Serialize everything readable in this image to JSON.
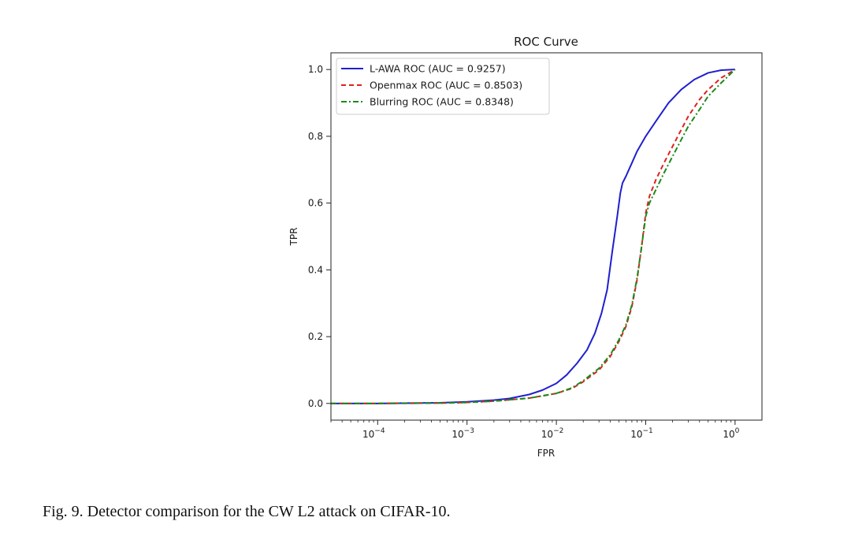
{
  "figure": {
    "caption": "Fig. 9.  Detector comparison for the CW L2 attack on CIFAR-10."
  },
  "chart_data": {
    "type": "line",
    "title": "ROC Curve",
    "xlabel": "FPR",
    "ylabel": "TPR",
    "x_scale": "log",
    "xlim": [
      3e-05,
      2
    ],
    "ylim": [
      -0.05,
      1.05
    ],
    "x_ticks": [
      {
        "value": 0.0001,
        "base": "10",
        "exp": "−4"
      },
      {
        "value": 0.001,
        "base": "10",
        "exp": "−3"
      },
      {
        "value": 0.01,
        "base": "10",
        "exp": "−2"
      },
      {
        "value": 0.1,
        "base": "10",
        "exp": "−1"
      },
      {
        "value": 1,
        "base": "10",
        "exp": "0"
      }
    ],
    "y_ticks": [
      {
        "value": 0.0,
        "label": "0.0"
      },
      {
        "value": 0.2,
        "label": "0.2"
      },
      {
        "value": 0.4,
        "label": "0.4"
      },
      {
        "value": 0.6,
        "label": "0.6"
      },
      {
        "value": 0.8,
        "label": "0.8"
      },
      {
        "value": 1.0,
        "label": "1.0"
      }
    ],
    "grid": false,
    "legend_position": "upper-left",
    "series": [
      {
        "name": "L-AWA ROC (AUC = 0.9257)",
        "color": "#1f1fd0",
        "dash": "solid",
        "points": [
          [
            3e-05,
            0.0
          ],
          [
            0.0001,
            0.0
          ],
          [
            0.0005,
            0.002
          ],
          [
            0.001,
            0.005
          ],
          [
            0.002,
            0.01
          ],
          [
            0.003,
            0.015
          ],
          [
            0.005,
            0.027
          ],
          [
            0.007,
            0.04
          ],
          [
            0.01,
            0.06
          ],
          [
            0.013,
            0.085
          ],
          [
            0.017,
            0.12
          ],
          [
            0.022,
            0.16
          ],
          [
            0.027,
            0.21
          ],
          [
            0.032,
            0.27
          ],
          [
            0.037,
            0.34
          ],
          [
            0.042,
            0.45
          ],
          [
            0.048,
            0.56
          ],
          [
            0.052,
            0.63
          ],
          [
            0.055,
            0.66
          ],
          [
            0.06,
            0.68
          ],
          [
            0.07,
            0.72
          ],
          [
            0.08,
            0.755
          ],
          [
            0.1,
            0.8
          ],
          [
            0.13,
            0.845
          ],
          [
            0.18,
            0.9
          ],
          [
            0.25,
            0.94
          ],
          [
            0.35,
            0.97
          ],
          [
            0.5,
            0.99
          ],
          [
            0.7,
            0.998
          ],
          [
            1.0,
            1.0
          ]
        ]
      },
      {
        "name": "Openmax ROC (AUC = 0.8503)",
        "color": "#e02020",
        "dash": "dashed",
        "points": [
          [
            3e-05,
            0.0
          ],
          [
            0.0001,
            0.0
          ],
          [
            0.0005,
            0.001
          ],
          [
            0.001,
            0.003
          ],
          [
            0.002,
            0.007
          ],
          [
            0.005,
            0.016
          ],
          [
            0.01,
            0.03
          ],
          [
            0.015,
            0.045
          ],
          [
            0.02,
            0.065
          ],
          [
            0.03,
            0.1
          ],
          [
            0.04,
            0.14
          ],
          [
            0.05,
            0.185
          ],
          [
            0.06,
            0.23
          ],
          [
            0.07,
            0.29
          ],
          [
            0.08,
            0.37
          ],
          [
            0.09,
            0.47
          ],
          [
            0.1,
            0.57
          ],
          [
            0.11,
            0.62
          ],
          [
            0.13,
            0.67
          ],
          [
            0.16,
            0.72
          ],
          [
            0.2,
            0.77
          ],
          [
            0.25,
            0.82
          ],
          [
            0.3,
            0.86
          ],
          [
            0.4,
            0.91
          ],
          [
            0.5,
            0.94
          ],
          [
            0.7,
            0.975
          ],
          [
            1.0,
            1.0
          ]
        ]
      },
      {
        "name": "Blurring ROC (AUC = 0.8348)",
        "color": "#1a8a1a",
        "dash": "dashdot",
        "points": [
          [
            3e-05,
            0.0
          ],
          [
            0.0001,
            0.0
          ],
          [
            0.0005,
            0.001
          ],
          [
            0.001,
            0.003
          ],
          [
            0.002,
            0.007
          ],
          [
            0.005,
            0.016
          ],
          [
            0.01,
            0.03
          ],
          [
            0.015,
            0.047
          ],
          [
            0.02,
            0.068
          ],
          [
            0.03,
            0.105
          ],
          [
            0.04,
            0.145
          ],
          [
            0.05,
            0.19
          ],
          [
            0.06,
            0.235
          ],
          [
            0.07,
            0.295
          ],
          [
            0.08,
            0.375
          ],
          [
            0.09,
            0.47
          ],
          [
            0.1,
            0.56
          ],
          [
            0.11,
            0.6
          ],
          [
            0.13,
            0.64
          ],
          [
            0.16,
            0.69
          ],
          [
            0.2,
            0.74
          ],
          [
            0.25,
            0.79
          ],
          [
            0.3,
            0.83
          ],
          [
            0.4,
            0.88
          ],
          [
            0.5,
            0.92
          ],
          [
            0.7,
            0.96
          ],
          [
            1.0,
            1.0
          ]
        ]
      }
    ]
  }
}
